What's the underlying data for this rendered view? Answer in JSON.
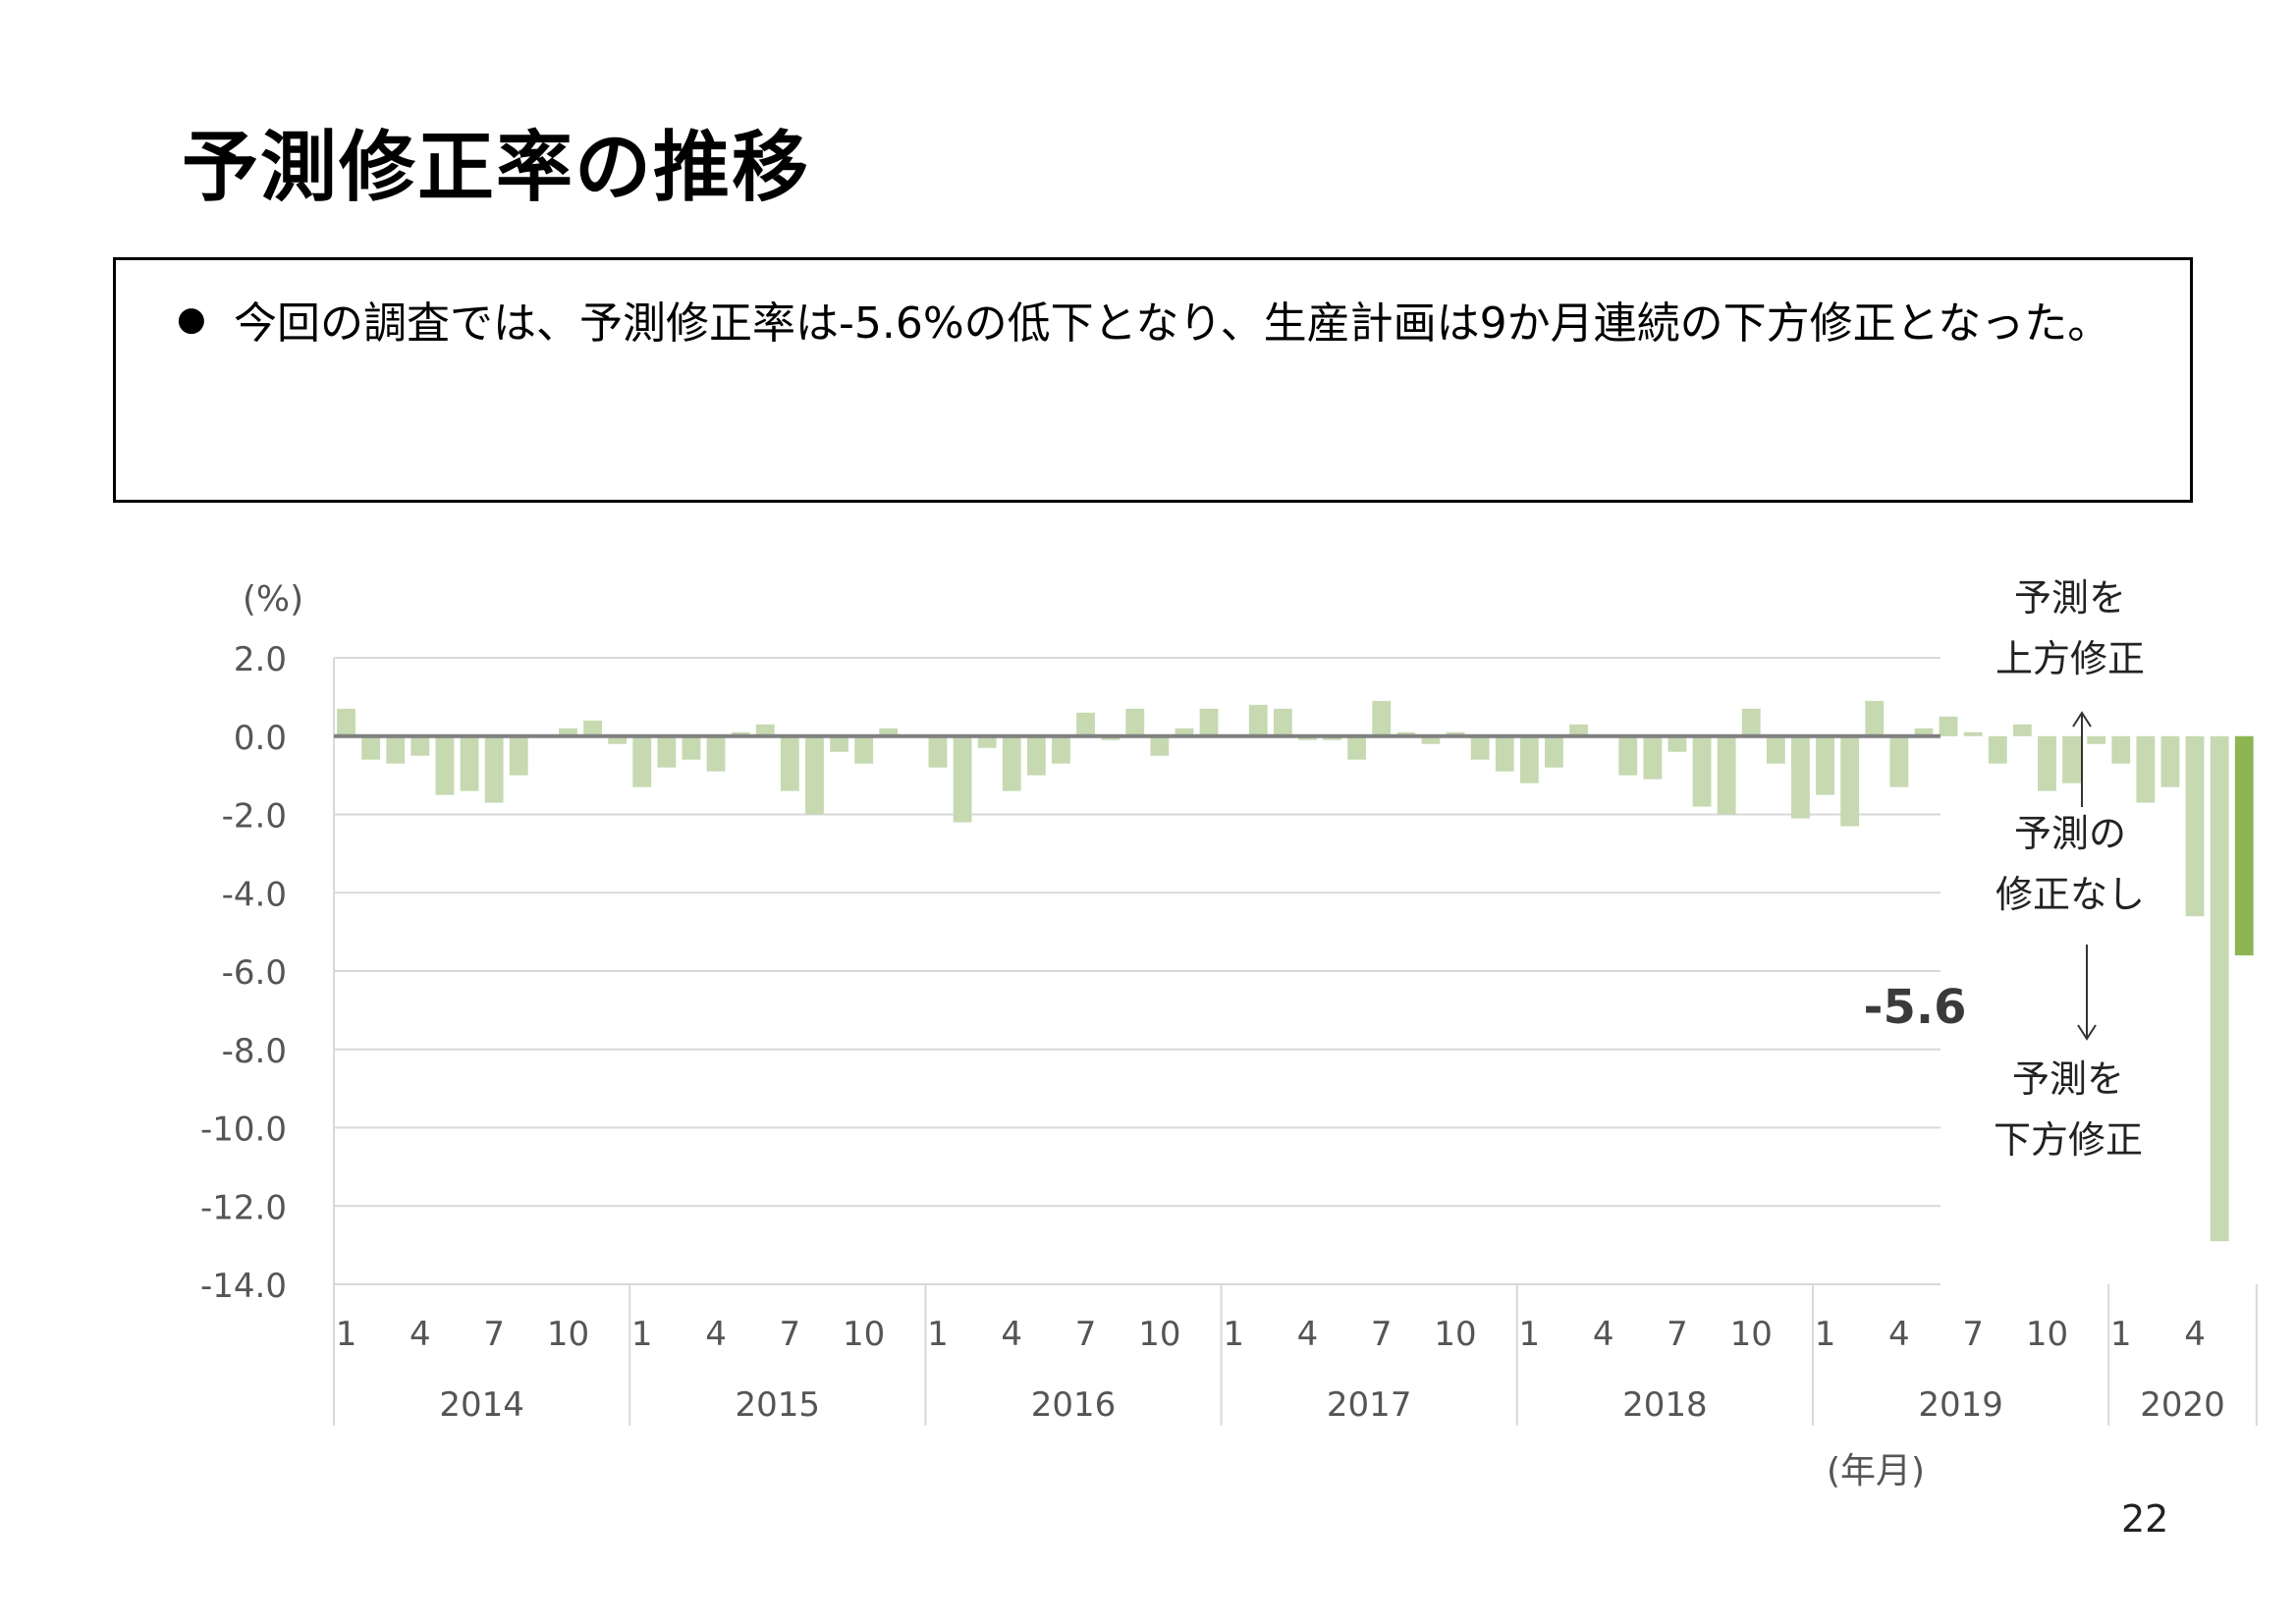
{
  "slide": {
    "title": "予測修正率の推移",
    "summary": "今回の調査では、予測修正率は-5.6%の低下となり、生産計画は9か月連続の下方修正となった。",
    "page_number": "22"
  },
  "side_labels": {
    "upper_line1": "予測を",
    "upper_line2": "上方修正",
    "middle_line1": "予測の",
    "middle_line2": "修正なし",
    "lower_line1": "予測を",
    "lower_line2": "下方修正"
  },
  "colors": {
    "bar": "#c6d9b1",
    "bar_highlight": "#8db554",
    "zero_line": "#808080",
    "grid": "#d9d9d9"
  },
  "chart_data": {
    "type": "bar",
    "title": "",
    "ylabel": "(%)",
    "xlabel": "(年月)",
    "ylim": [
      -14,
      2
    ],
    "yticks": [
      "2.0",
      "0.0",
      "-2.0",
      "-4.0",
      "-6.0",
      "-8.0",
      "-10.0",
      "-12.0",
      "-14.0"
    ],
    "month_tick_labels": [
      "1",
      "4",
      "7",
      "10"
    ],
    "years": [
      "2014",
      "2015",
      "2016",
      "2017",
      "2018",
      "2019",
      "2020"
    ],
    "start": "2014-01",
    "end": "2020-06",
    "values": [
      0.7,
      -0.6,
      -0.7,
      -0.5,
      -1.5,
      -1.4,
      -1.7,
      -1.0,
      0.0,
      0.2,
      0.4,
      -0.2,
      -1.3,
      -0.8,
      -0.6,
      -0.9,
      0.1,
      0.3,
      -1.4,
      -2.0,
      -0.4,
      -0.7,
      0.2,
      0.0,
      -0.8,
      -2.2,
      -0.3,
      -1.4,
      -1.0,
      -0.7,
      0.6,
      -0.1,
      0.7,
      -0.5,
      0.2,
      0.7,
      0.0,
      0.8,
      0.7,
      -0.1,
      -0.1,
      -0.6,
      0.9,
      0.1,
      -0.2,
      0.1,
      -0.6,
      -0.9,
      -1.2,
      -0.8,
      0.3,
      0.0,
      -1.0,
      -1.1,
      -0.4,
      -1.8,
      -2.0,
      0.7,
      -0.7,
      -2.1,
      -1.5,
      -2.3,
      0.9,
      -1.3,
      0.2,
      0.5,
      0.1,
      -0.7,
      0.3,
      -1.4,
      -1.2,
      -0.2,
      -0.7,
      -1.7,
      -1.3,
      -4.6,
      -12.9,
      -5.6
    ],
    "highlight": {
      "label": "-5.6",
      "value": -5.6,
      "month": "2020-06"
    }
  }
}
